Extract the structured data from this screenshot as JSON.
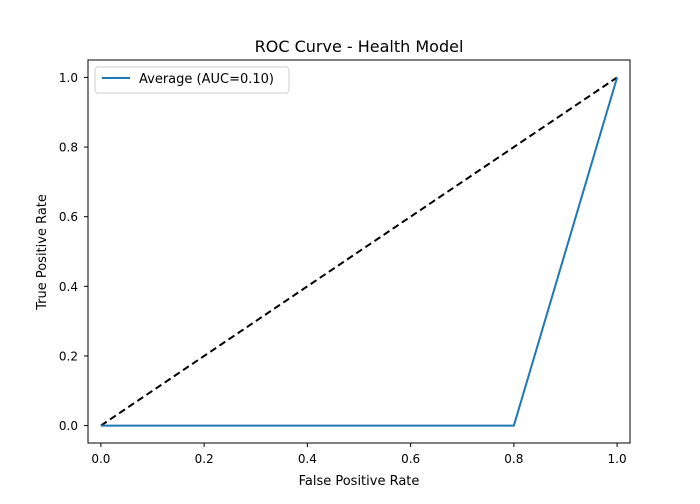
{
  "chart_data": {
    "type": "line",
    "title": "ROC Curve - Health Model",
    "xlabel": "False Positive Rate",
    "ylabel": "True Positive Rate",
    "xlim": [
      -0.025,
      1.025
    ],
    "ylim": [
      -0.05,
      1.05
    ],
    "xticks": [
      0.0,
      0.2,
      0.4,
      0.6,
      0.8,
      1.0
    ],
    "xtick_labels": [
      "0.0",
      "0.2",
      "0.4",
      "0.6",
      "0.8",
      "1.0"
    ],
    "yticks": [
      0.0,
      0.2,
      0.4,
      0.6,
      0.8,
      1.0
    ],
    "ytick_labels": [
      "0.0",
      "0.2",
      "0.4",
      "0.6",
      "0.8",
      "1.0"
    ],
    "grid": false,
    "legend_position": "upper left",
    "series": [
      {
        "name": "Average (AUC=0.10)",
        "color": "#1f77b4",
        "style": "solid",
        "x": [
          0.0,
          0.8,
          1.0
        ],
        "y": [
          0.0,
          0.0,
          1.0
        ]
      }
    ],
    "reference_line": {
      "color": "#000000",
      "style": "dashed",
      "x": [
        0.0,
        1.0
      ],
      "y": [
        0.0,
        1.0
      ]
    }
  }
}
